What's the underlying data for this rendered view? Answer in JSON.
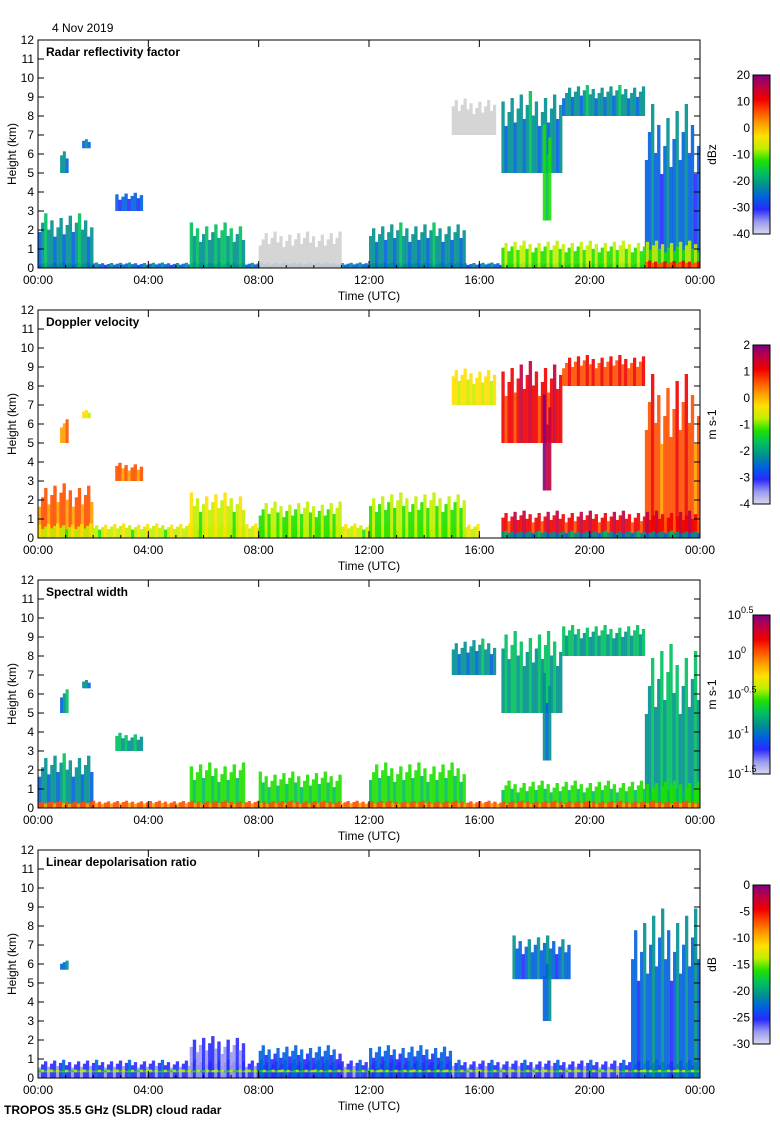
{
  "date_label": "4 Nov 2019",
  "footer": "TROPOS 35.5 GHz (SLDR) cloud radar",
  "colormap": [
    "#d8d8ee",
    "#9a9aee",
    "#2a2aff",
    "#0060e0",
    "#009090",
    "#00c060",
    "#20e000",
    "#c0f000",
    "#ffe000",
    "#ffa000",
    "#ff5000",
    "#f00000",
    "#c00040",
    "#800080"
  ],
  "gray_echo_color": "#d0d0d0",
  "chart_data": [
    {
      "type": "heatmap",
      "title": "Radar reflectivity factor",
      "xlabel": "Time (UTC)",
      "ylabel": "Height (km)",
      "xlim": [
        0,
        24
      ],
      "ylim": [
        0,
        12
      ],
      "xticks": [
        "00:00",
        "04:00",
        "08:00",
        "12:00",
        "16:00",
        "20:00",
        "00:00"
      ],
      "yticks": [
        "0",
        "1",
        "2",
        "3",
        "4",
        "5",
        "6",
        "7",
        "8",
        "9",
        "10",
        "11",
        "12"
      ],
      "colorbar": {
        "label": "dBz",
        "range": [
          -40,
          20
        ],
        "ticks": [
          {
            "v": "20"
          },
          {
            "v": "10"
          },
          {
            "v": "0"
          },
          {
            "v": "-10"
          },
          {
            "v": "-20"
          },
          {
            "v": "-30"
          },
          {
            "v": "-40"
          }
        ]
      },
      "echoes": [
        {
          "t": [
            0,
            24
          ],
          "h": [
            0,
            0.3
          ],
          "v": 0.25
        },
        {
          "t": [
            0,
            2
          ],
          "h": [
            0,
            3
          ],
          "v": 0.3
        },
        {
          "t": [
            0.8,
            1.1
          ],
          "h": [
            5,
            6.3
          ],
          "v": 0.3
        },
        {
          "t": [
            1.6,
            1.9
          ],
          "h": [
            6.3,
            6.8
          ],
          "v": 0.25
        },
        {
          "t": [
            2.8,
            3.8
          ],
          "h": [
            3,
            4
          ],
          "v": 0.2
        },
        {
          "t": [
            5.5,
            7.5
          ],
          "h": [
            0,
            2.5
          ],
          "v": 0.35
        },
        {
          "t": [
            8,
            11
          ],
          "h": [
            0,
            2
          ],
          "v": 0.0,
          "gray": true
        },
        {
          "t": [
            12,
            15.5
          ],
          "h": [
            0,
            2.5
          ],
          "v": 0.3
        },
        {
          "t": [
            15,
            16.6
          ],
          "h": [
            7,
            9
          ],
          "v": 0,
          "gray": true
        },
        {
          "t": [
            16.8,
            19
          ],
          "h": [
            5,
            9.5
          ],
          "v": 0.3
        },
        {
          "t": [
            18.3,
            18.6
          ],
          "h": [
            2.5,
            8
          ],
          "v": 0.45
        },
        {
          "t": [
            19,
            22
          ],
          "h": [
            8,
            9.7
          ],
          "v": 0.3
        },
        {
          "t": [
            22,
            24
          ],
          "h": [
            0,
            9
          ],
          "v": 0.25
        },
        {
          "t": [
            16.8,
            24
          ],
          "h": [
            0,
            1.5
          ],
          "v": 0.5
        },
        {
          "t": [
            22,
            24
          ],
          "h": [
            0,
            0.4
          ],
          "v": 0.8
        }
      ]
    },
    {
      "type": "heatmap",
      "title": "Doppler velocity",
      "xlabel": "Time (UTC)",
      "ylabel": "Height (km)",
      "xlim": [
        0,
        24
      ],
      "ylim": [
        0,
        12
      ],
      "xticks": [
        "00:00",
        "04:00",
        "08:00",
        "12:00",
        "16:00",
        "20:00",
        "00:00"
      ],
      "yticks": [
        "0",
        "1",
        "2",
        "3",
        "4",
        "5",
        "6",
        "7",
        "8",
        "9",
        "10",
        "11",
        "12"
      ],
      "colorbar": {
        "label": "m s-1",
        "range": [
          -4,
          2
        ],
        "ticks": [
          {
            "v": "2"
          },
          {
            "v": "1"
          },
          {
            "v": "0"
          },
          {
            "v": "-1"
          },
          {
            "v": "-2"
          },
          {
            "v": "-3"
          },
          {
            "v": "-4"
          }
        ]
      },
      "echoes": [
        {
          "t": [
            0,
            2
          ],
          "h": [
            0,
            3
          ],
          "v": 0.75
        },
        {
          "t": [
            0.8,
            1.1
          ],
          "h": [
            5,
            6.3
          ],
          "v": 0.7
        },
        {
          "t": [
            1.6,
            1.9
          ],
          "h": [
            6.3,
            6.8
          ],
          "v": 0.6
        },
        {
          "t": [
            2.8,
            3.8
          ],
          "h": [
            3,
            4
          ],
          "v": 0.75
        },
        {
          "t": [
            0,
            16
          ],
          "h": [
            0,
            0.8
          ],
          "v": 0.55
        },
        {
          "t": [
            5.5,
            7.5
          ],
          "h": [
            0,
            2.5
          ],
          "v": 0.55
        },
        {
          "t": [
            8,
            11
          ],
          "h": [
            0,
            2
          ],
          "v": 0.5
        },
        {
          "t": [
            12,
            15.5
          ],
          "h": [
            0,
            2.5
          ],
          "v": 0.5
        },
        {
          "t": [
            15,
            16.6
          ],
          "h": [
            7,
            9
          ],
          "v": 0.6
        },
        {
          "t": [
            16.8,
            19
          ],
          "h": [
            5,
            9.5
          ],
          "v": 0.85
        },
        {
          "t": [
            18.3,
            18.6
          ],
          "h": [
            2.5,
            8
          ],
          "v": 0.95
        },
        {
          "t": [
            19,
            22
          ],
          "h": [
            8,
            9.7
          ],
          "v": 0.8
        },
        {
          "t": [
            22,
            24
          ],
          "h": [
            0,
            9
          ],
          "v": 0.78
        },
        {
          "t": [
            16.8,
            24
          ],
          "h": [
            0,
            1.5
          ],
          "v": 0.85
        },
        {
          "t": [
            16.8,
            24
          ],
          "h": [
            0,
            0.4
          ],
          "v": 0.3
        }
      ]
    },
    {
      "type": "heatmap",
      "title": "Spectral width",
      "xlabel": "Time (UTC)",
      "ylabel": "Height (km)",
      "xlim": [
        0,
        24
      ],
      "ylim": [
        0,
        12
      ],
      "xticks": [
        "00:00",
        "04:00",
        "08:00",
        "12:00",
        "16:00",
        "20:00",
        "00:00"
      ],
      "yticks": [
        "0",
        "1",
        "2",
        "3",
        "4",
        "5",
        "6",
        "7",
        "8",
        "9",
        "10",
        "11",
        "12"
      ],
      "colorbar": {
        "label": "m s-1",
        "scale": "log",
        "range": [
          -1.5,
          0.5
        ],
        "ticks": [
          {
            "v": "10",
            "exp": "0.5"
          },
          {
            "v": "10",
            "exp": "0"
          },
          {
            "v": "10",
            "exp": "-0.5"
          },
          {
            "v": "10",
            "exp": "-1"
          },
          {
            "v": "10",
            "exp": "-1.5"
          }
        ]
      },
      "echoes": [
        {
          "t": [
            0,
            2
          ],
          "h": [
            0,
            3
          ],
          "v": 0.3
        },
        {
          "t": [
            0.8,
            1.1
          ],
          "h": [
            5,
            6.3
          ],
          "v": 0.3
        },
        {
          "t": [
            1.6,
            1.9
          ],
          "h": [
            6.3,
            6.8
          ],
          "v": 0.3
        },
        {
          "t": [
            2.8,
            3.8
          ],
          "h": [
            3,
            4
          ],
          "v": 0.35
        },
        {
          "t": [
            5.5,
            7.5
          ],
          "h": [
            0,
            2.5
          ],
          "v": 0.45
        },
        {
          "t": [
            8,
            11
          ],
          "h": [
            0,
            2
          ],
          "v": 0.45
        },
        {
          "t": [
            12,
            15.5
          ],
          "h": [
            0,
            2.5
          ],
          "v": 0.45
        },
        {
          "t": [
            15,
            16.6
          ],
          "h": [
            7,
            9
          ],
          "v": 0.3
        },
        {
          "t": [
            16.8,
            19
          ],
          "h": [
            5,
            9.5
          ],
          "v": 0.35
        },
        {
          "t": [
            18.3,
            18.6
          ],
          "h": [
            2.5,
            8
          ],
          "v": 0.3
        },
        {
          "t": [
            19,
            22
          ],
          "h": [
            8,
            9.7
          ],
          "v": 0.35
        },
        {
          "t": [
            22,
            24
          ],
          "h": [
            0,
            9
          ],
          "v": 0.35
        },
        {
          "t": [
            16.8,
            24
          ],
          "h": [
            0,
            1.5
          ],
          "v": 0.45
        },
        {
          "t": [
            0,
            24
          ],
          "h": [
            0,
            0.4
          ],
          "v": 0.75
        }
      ]
    },
    {
      "type": "heatmap",
      "title": "Linear depolarisation ratio",
      "xlabel": "Time (UTC)",
      "ylabel": "Height (km)",
      "xlim": [
        0,
        24
      ],
      "ylim": [
        0,
        12
      ],
      "xticks": [
        "00:00",
        "04:00",
        "08:00",
        "12:00",
        "16:00",
        "20:00",
        "00:00"
      ],
      "yticks": [
        "0",
        "1",
        "2",
        "3",
        "4",
        "5",
        "6",
        "7",
        "8",
        "9",
        "10",
        "11",
        "12"
      ],
      "colorbar": {
        "label": "dB",
        "range": [
          -30,
          0
        ],
        "ticks": [
          {
            "v": "0"
          },
          {
            "v": "-5"
          },
          {
            "v": "-10"
          },
          {
            "v": "-15"
          },
          {
            "v": "-20"
          },
          {
            "v": "-25"
          },
          {
            "v": "-30"
          }
        ]
      },
      "echoes": [
        {
          "t": [
            0,
            24
          ],
          "h": [
            0,
            1
          ],
          "v": 0.15
        },
        {
          "t": [
            0.8,
            1.1
          ],
          "h": [
            5.7,
            6.2
          ],
          "v": 0.25
        },
        {
          "t": [
            5.5,
            7.5
          ],
          "h": [
            0,
            2.3
          ],
          "v": 0.12
        },
        {
          "t": [
            8,
            11
          ],
          "h": [
            0,
            1.8
          ],
          "v": 0.2
        },
        {
          "t": [
            12,
            15
          ],
          "h": [
            0,
            1.8
          ],
          "v": 0.2
        },
        {
          "t": [
            17.2,
            19.3
          ],
          "h": [
            5.2,
            7.6
          ],
          "v": 0.25
        },
        {
          "t": [
            18.3,
            18.6
          ],
          "h": [
            3,
            7
          ],
          "v": 0.25
        },
        {
          "t": [
            21.5,
            24
          ],
          "h": [
            0,
            9.3
          ],
          "v": 0.25
        },
        {
          "t": [
            0,
            24
          ],
          "h": [
            0.3,
            0.45
          ],
          "v": 0.5
        }
      ]
    }
  ]
}
